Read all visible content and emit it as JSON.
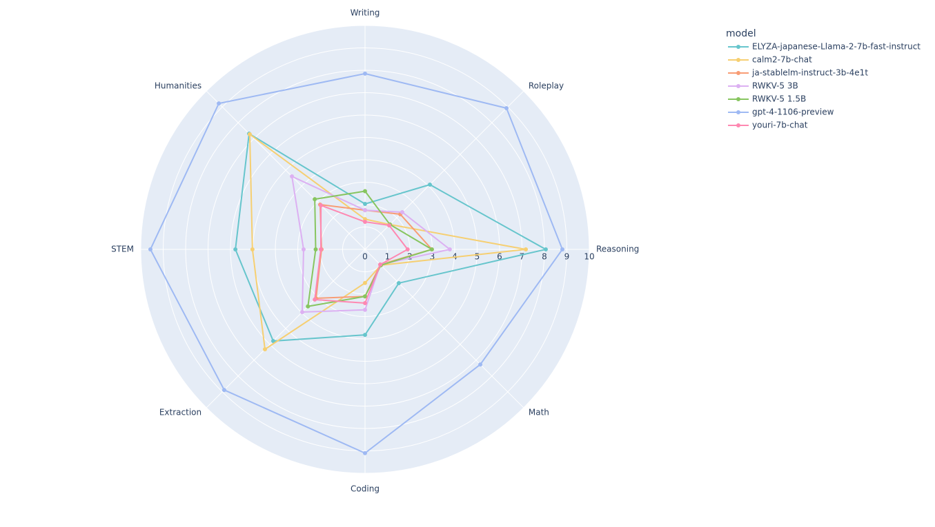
{
  "chart_data": {
    "type": "radar",
    "legend_title": "model",
    "categories": [
      "Writing",
      "Roleplay",
      "Reasoning",
      "Math",
      "Coding",
      "Extraction",
      "STEM",
      "Humanities"
    ],
    "rlim": [
      0,
      10
    ],
    "rticks": [
      0,
      1,
      2,
      3,
      4,
      5,
      6,
      7,
      8,
      9,
      10
    ],
    "grid": true,
    "series": [
      {
        "name": "ELYZA-japanese-Llama-2-7b-fast-instruct",
        "color": "#66c5cc",
        "values": [
          2.03,
          4.09,
          8.06,
          2.13,
          3.82,
          5.79,
          5.78,
          7.31
        ]
      },
      {
        "name": "calm2-7b-chat",
        "color": "#f6cf71",
        "values": [
          1.35,
          1.57,
          7.17,
          1.0,
          1.5,
          6.31,
          5.02,
          7.27
        ]
      },
      {
        "name": "ja-stablelm-instruct-3b-4e1t",
        "color": "#f89c74",
        "values": [
          1.75,
          2.22,
          2.98,
          0.96,
          2.1,
          3.09,
          1.94,
          2.83
        ]
      },
      {
        "name": "RWKV-5 3B",
        "color": "#dcb0f2",
        "values": [
          1.75,
          2.35,
          3.78,
          0.96,
          2.7,
          3.96,
          2.74,
          4.61
        ]
      },
      {
        "name": "RWKV-5 1.5B",
        "color": "#87c55f",
        "values": [
          2.6,
          1.57,
          2.98,
          1.0,
          2.1,
          3.6,
          2.2,
          3.17
        ]
      },
      {
        "name": "gpt-4-1106-preview",
        "color": "#9eb9f3",
        "values": [
          7.85,
          8.92,
          8.8,
          7.27,
          9.1,
          8.88,
          9.57,
          9.22
        ]
      },
      {
        "name": "youri-7b-chat",
        "color": "#fe88b1",
        "values": [
          1.23,
          1.52,
          1.9,
          0.96,
          2.4,
          3.17,
          1.97,
          2.78
        ]
      }
    ]
  }
}
